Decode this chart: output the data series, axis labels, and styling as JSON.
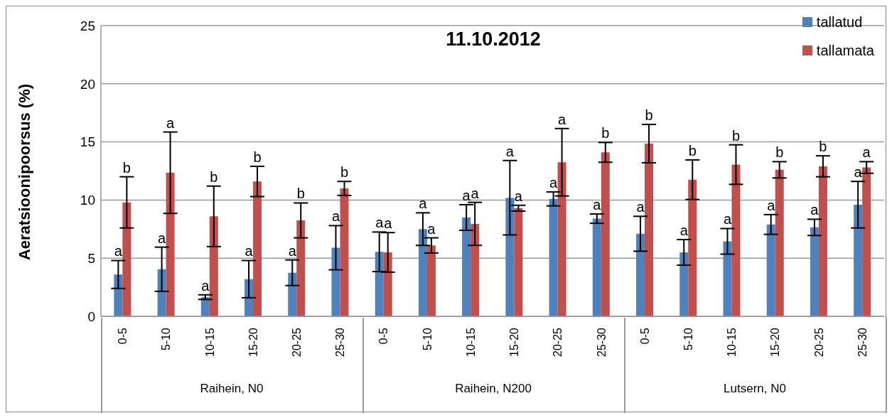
{
  "chart_data": {
    "type": "bar",
    "title": "11.10.2012",
    "ylabel": "Aeratsioonipoorsus (%)",
    "categories": [
      "0-5",
      "5-10",
      "10-15",
      "15-20",
      "20-25",
      "25-30",
      "0-5",
      "5-10",
      "10-15",
      "15-20",
      "20-25",
      "25-30",
      "0-5",
      "5-10",
      "10-15",
      "15-20",
      "20-25",
      "25-30"
    ],
    "annotations": [
      "Raihein, N0",
      "Raihein, N200",
      "Lutsern, N0"
    ],
    "series": [
      {
        "name": "tallatud",
        "color": "#4f81bd",
        "values": [
          3.6,
          4.05,
          1.65,
          3.2,
          3.75,
          5.9,
          5.55,
          7.5,
          8.5,
          10.2,
          10.1,
          8.4,
          7.1,
          5.5,
          6.45,
          7.9,
          7.65,
          9.6
        ],
        "errors": [
          1.2,
          1.9,
          0.2,
          1.6,
          1.1,
          1.9,
          1.7,
          1.4,
          1.1,
          3.2,
          0.6,
          0.4,
          1.5,
          1.1,
          1.1,
          0.85,
          0.7,
          2.0
        ],
        "value_labels": [
          "a",
          "a",
          "a",
          "a",
          "a",
          "a",
          "a",
          "a",
          "a",
          "a",
          "a",
          "a",
          "a",
          "a",
          "a",
          "a",
          "a",
          "a"
        ]
      },
      {
        "name": "tallamata",
        "color": "#c0504d",
        "values": [
          9.8,
          12.35,
          8.6,
          11.6,
          8.25,
          11.0,
          5.5,
          6.1,
          7.95,
          9.3,
          13.25,
          14.1,
          14.85,
          11.75,
          13.05,
          12.6,
          12.9,
          12.8
        ],
        "errors": [
          2.2,
          3.5,
          2.6,
          1.3,
          1.5,
          0.6,
          1.7,
          0.65,
          1.85,
          0.25,
          2.9,
          0.85,
          1.65,
          1.7,
          1.7,
          0.7,
          0.9,
          0.5
        ],
        "value_labels": [
          "b",
          "a",
          "b",
          "b",
          "b",
          "b",
          "a",
          "a",
          "a",
          "a",
          "a",
          "b",
          "b",
          "b",
          "b",
          "b",
          "b",
          "a"
        ]
      }
    ],
    "ylim": [
      0,
      25
    ],
    "yticks": [
      0,
      5,
      10,
      15,
      20,
      25
    ],
    "grid": "y",
    "legend": "top right"
  }
}
